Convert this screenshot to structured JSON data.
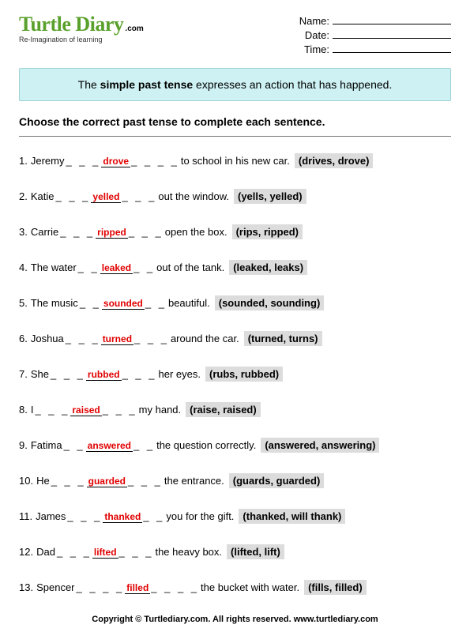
{
  "logo": {
    "main": "Turtle Diary",
    "suffix": ".com",
    "tagline": "Re-Imagination of learning"
  },
  "meta": {
    "name_label": "Name:",
    "date_label": "Date:",
    "time_label": "Time:"
  },
  "info_box": {
    "pre": "The ",
    "bold": "simple past tense",
    "post": " expresses an action that has happened."
  },
  "instructions": "Choose the correct past tense to complete each sentence.",
  "questions": [
    {
      "n": "1.",
      "before": "Jeremy ",
      "answer": "drove",
      "after": " to school in his new car. ",
      "choices": "(drives, drove)",
      "ld": "_ _ _",
      "rd": "_ _ _ _"
    },
    {
      "n": "2.",
      "before": "Katie ",
      "answer": "yelled",
      "after": " out the window.  ",
      "choices": "(yells, yelled)",
      "ld": "_ _ _ ",
      "rd": " _ _ _"
    },
    {
      "n": "3.",
      "before": "Carrie ",
      "answer": "ripped",
      "after": " open the box. ",
      "choices": "(rips, ripped)",
      "ld": "_ _ _ ",
      "rd": " _ _ _"
    },
    {
      "n": "4.",
      "before": "The water ",
      "answer": "leaked",
      "after": " out of the tank.  ",
      "choices": "(leaked, leaks)",
      "ld": "_ _ ",
      "rd": " _ _"
    },
    {
      "n": "5.",
      "before": "The music ",
      "answer": "sounded",
      "after": " beautiful. ",
      "choices": "(sounded, sounding)",
      "ld": "_ _ ",
      "rd": " _ _"
    },
    {
      "n": "6.",
      "before": "Joshua ",
      "answer": "turned",
      "after": " around the car.  ",
      "choices": "(turned, turns)",
      "ld": "_ _ _ ",
      "rd": " _ _ _"
    },
    {
      "n": "7.",
      "before": "She ",
      "answer": "rubbed",
      "after": " her eyes.  ",
      "choices": "(rubs, rubbed)",
      "ld": "_ _ _ ",
      "rd": " _ _ _"
    },
    {
      "n": "8.",
      "before": "I ",
      "answer": "raised",
      "after": " my hand.  ",
      "choices": "(raise, raised)",
      "ld": "_ _ _ ",
      "rd": " _ _ _"
    },
    {
      "n": "9.",
      "before": "Fatima ",
      "answer": "answered",
      "after": " the question correctly.  ",
      "choices": "(answered, answering)",
      "ld": "_ _ ",
      "rd": "_ _"
    },
    {
      "n": "10.",
      "before": "He ",
      "answer": "guarded",
      "after": " the entrance.  ",
      "choices": "(guards, guarded)",
      "ld": "_ _ _ ",
      "rd": " _ _ _"
    },
    {
      "n": "11.",
      "before": "James ",
      "answer": "thanked",
      "after": " you for the gift.  ",
      "choices": "(thanked, will thank)",
      "ld": "_ _ _ ",
      "rd": " _ _"
    },
    {
      "n": "12.",
      "before": "Dad ",
      "answer": "lifted",
      "after": " the heavy box. ",
      "choices": "(lifted, lift)",
      "ld": "_ _ _",
      "rd": "_ _ _"
    },
    {
      "n": "13.",
      "before": "Spencer ",
      "answer": "filled",
      "after": " the bucket with water.  ",
      "choices": "(fills, filled)",
      "ld": "_ _ _ _ ",
      "rd": " _ _ _ _"
    }
  ],
  "footer": "Copyright © Turtlediary.com. All rights reserved.   www.turtlediary.com"
}
